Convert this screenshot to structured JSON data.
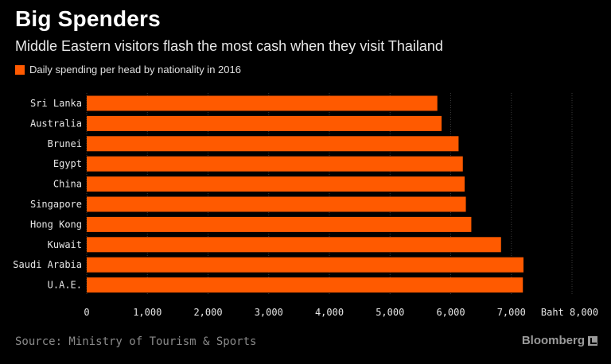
{
  "header": {
    "title": "Big Spenders",
    "subtitle": "Middle Eastern visitors flash the most cash when they visit Thailand"
  },
  "legend": {
    "label": "Daily spending per head by nationality in 2016",
    "color": "#ff5a00"
  },
  "footer": {
    "source": "Source: Ministry of Tourism & Sports",
    "brand": "Bloomberg"
  },
  "chart_data": {
    "type": "bar",
    "orientation": "horizontal",
    "categories": [
      "Sri Lanka",
      "Australia",
      "Brunei",
      "Egypt",
      "China",
      "Singapore",
      "Hong Kong",
      "Kuwait",
      "Saudi Arabia",
      "U.A.E."
    ],
    "series": [
      {
        "name": "Daily spending per head by nationality in 2016",
        "values": [
          5780,
          5850,
          6130,
          6200,
          6230,
          6250,
          6340,
          6830,
          7200,
          7190
        ],
        "color": "#ff5a00"
      }
    ],
    "xlim": [
      0,
      8000
    ],
    "xticks": [
      "0",
      "1,000",
      "2,000",
      "3,000",
      "4,000",
      "5,000",
      "6,000",
      "7,000",
      "Baht 8,000"
    ],
    "grid": true
  }
}
